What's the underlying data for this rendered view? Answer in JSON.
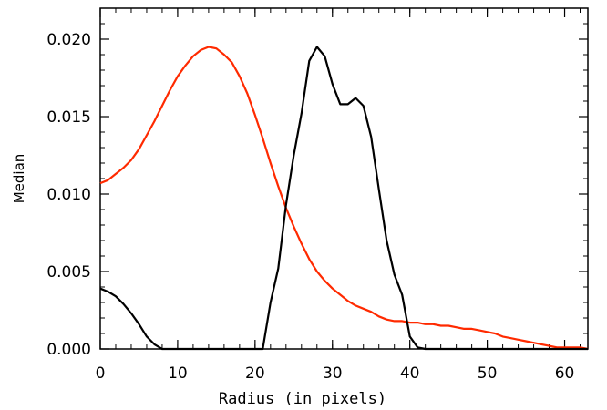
{
  "chart_data": {
    "type": "line",
    "title": "",
    "xlabel": "Radius (in pixels)",
    "ylabel": "Median",
    "xlim": [
      0,
      63
    ],
    "ylim": [
      0,
      0.022
    ],
    "grid": false,
    "legend": "none",
    "x_ticks": [
      0,
      10,
      20,
      30,
      40,
      50,
      60
    ],
    "x_tick_labels": [
      "0",
      "10",
      "20",
      "30",
      "40",
      "50",
      "60"
    ],
    "y_ticks": [
      0,
      0.005,
      0.01,
      0.015,
      0.02
    ],
    "y_tick_labels": [
      "0.000",
      "0.005",
      "0.010",
      "0.015",
      "0.020"
    ],
    "series": [
      {
        "color": "#ff2a00",
        "points": [
          [
            0,
            0.0107
          ],
          [
            1,
            0.0109
          ],
          [
            2,
            0.0113
          ],
          [
            3,
            0.0117
          ],
          [
            4,
            0.0122
          ],
          [
            5,
            0.0129
          ],
          [
            6,
            0.0138
          ],
          [
            7,
            0.0147
          ],
          [
            8,
            0.0157
          ],
          [
            9,
            0.0167
          ],
          [
            10,
            0.0176
          ],
          [
            11,
            0.0183
          ],
          [
            12,
            0.0189
          ],
          [
            13,
            0.0193
          ],
          [
            14,
            0.0195
          ],
          [
            15,
            0.0194
          ],
          [
            16,
            0.019
          ],
          [
            17,
            0.0185
          ],
          [
            18,
            0.0176
          ],
          [
            19,
            0.0165
          ],
          [
            20,
            0.0151
          ],
          [
            21,
            0.0136
          ],
          [
            22,
            0.012
          ],
          [
            23,
            0.0105
          ],
          [
            24,
            0.0091
          ],
          [
            25,
            0.0079
          ],
          [
            26,
            0.0068
          ],
          [
            27,
            0.0058
          ],
          [
            28,
            0.005
          ],
          [
            29,
            0.0044
          ],
          [
            30,
            0.0039
          ],
          [
            31,
            0.0035
          ],
          [
            32,
            0.0031
          ],
          [
            33,
            0.0028
          ],
          [
            34,
            0.0026
          ],
          [
            35,
            0.0024
          ],
          [
            36,
            0.0021
          ],
          [
            37,
            0.0019
          ],
          [
            38,
            0.0018
          ],
          [
            39,
            0.0018
          ],
          [
            40,
            0.0017
          ],
          [
            41,
            0.0017
          ],
          [
            42,
            0.0016
          ],
          [
            43,
            0.0016
          ],
          [
            44,
            0.0015
          ],
          [
            45,
            0.0015
          ],
          [
            46,
            0.0014
          ],
          [
            47,
            0.0013
          ],
          [
            48,
            0.0013
          ],
          [
            49,
            0.0012
          ],
          [
            50,
            0.0011
          ],
          [
            51,
            0.001
          ],
          [
            52,
            0.0008
          ],
          [
            53,
            0.0007
          ],
          [
            54,
            0.0006
          ],
          [
            55,
            0.0005
          ],
          [
            56,
            0.0004
          ],
          [
            57,
            0.0003
          ],
          [
            58,
            0.0002
          ],
          [
            59,
            0.0001
          ],
          [
            60,
            0.0001
          ],
          [
            61,
            0.0001
          ],
          [
            62,
            0.0001
          ],
          [
            63,
            0.0
          ]
        ]
      },
      {
        "color": "#000000",
        "points": [
          [
            0,
            0.0039
          ],
          [
            1,
            0.0037
          ],
          [
            2,
            0.0034
          ],
          [
            3,
            0.0029
          ],
          [
            4,
            0.0023
          ],
          [
            5,
            0.0016
          ],
          [
            6,
            0.0008
          ],
          [
            7,
            0.0003
          ],
          [
            8,
            0.0
          ],
          [
            9,
            0.0
          ],
          [
            10,
            0.0
          ],
          [
            11,
            0.0
          ],
          [
            12,
            0.0
          ],
          [
            13,
            0.0
          ],
          [
            14,
            0.0
          ],
          [
            15,
            0.0
          ],
          [
            16,
            0.0
          ],
          [
            17,
            0.0
          ],
          [
            18,
            0.0
          ],
          [
            19,
            0.0
          ],
          [
            20,
            0.0
          ],
          [
            21,
            0.0
          ],
          [
            22,
            0.003
          ],
          [
            23,
            0.0052
          ],
          [
            24,
            0.0093
          ],
          [
            25,
            0.0125
          ],
          [
            26,
            0.0152
          ],
          [
            27,
            0.0186
          ],
          [
            28,
            0.0195
          ],
          [
            29,
            0.0189
          ],
          [
            30,
            0.0171
          ],
          [
            31,
            0.0158
          ],
          [
            32,
            0.0158
          ],
          [
            33,
            0.0162
          ],
          [
            34,
            0.0157
          ],
          [
            35,
            0.0137
          ],
          [
            36,
            0.0103
          ],
          [
            37,
            0.007
          ],
          [
            38,
            0.0048
          ],
          [
            39,
            0.0035
          ],
          [
            40,
            0.0008
          ],
          [
            41,
            0.0001
          ],
          [
            42,
            0.0
          ],
          [
            43,
            0.0
          ],
          [
            44,
            0.0
          ],
          [
            45,
            0.0
          ],
          [
            46,
            0.0
          ],
          [
            47,
            0.0
          ],
          [
            48,
            0.0
          ],
          [
            49,
            0.0
          ],
          [
            50,
            0.0
          ],
          [
            51,
            0.0
          ],
          [
            52,
            0.0
          ],
          [
            53,
            0.0
          ],
          [
            54,
            0.0
          ],
          [
            55,
            0.0
          ],
          [
            56,
            0.0
          ],
          [
            57,
            0.0
          ],
          [
            58,
            0.0
          ],
          [
            59,
            0.0
          ],
          [
            60,
            0.0
          ],
          [
            61,
            0.0
          ],
          [
            62,
            0.0
          ],
          [
            63,
            0.0
          ]
        ]
      }
    ]
  }
}
